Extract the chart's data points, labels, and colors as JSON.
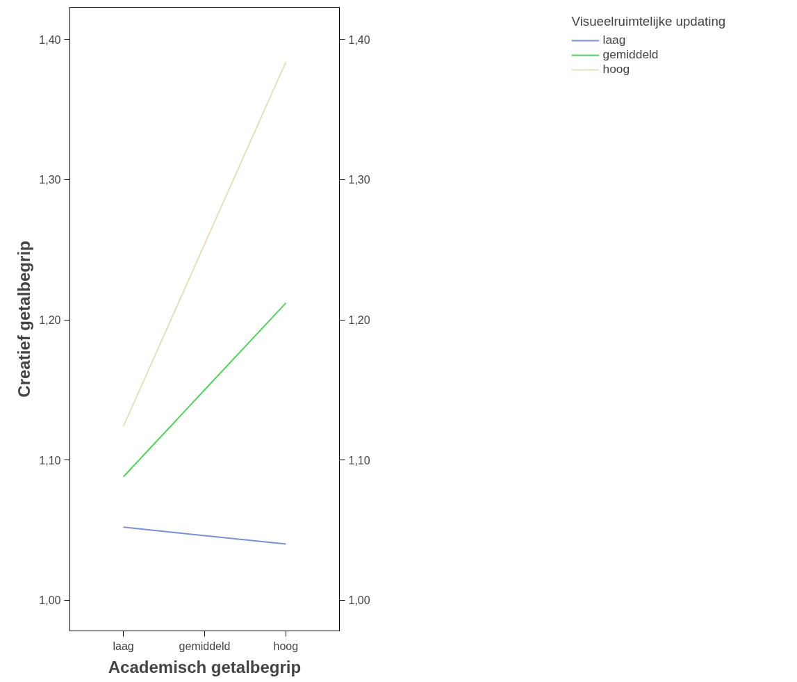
{
  "chart_data": {
    "type": "line",
    "xlabel": "Academisch getalbegrip",
    "ylabel": "Creatief getalbegrip",
    "legend_title": "Visueelruimtelijke updating",
    "categories": [
      "laag",
      "gemiddeld",
      "hoog"
    ],
    "series": [
      {
        "name": "laag",
        "color": "#7b8fd6",
        "values": [
          1.052,
          1.046,
          1.04
        ]
      },
      {
        "name": "gemiddeld",
        "color": "#4fd35a",
        "values": [
          1.088,
          1.15,
          1.212
        ]
      },
      {
        "name": "hoog",
        "color": "#e6e0b8",
        "values": [
          1.124,
          1.254,
          1.384
        ]
      }
    ],
    "ylim": [
      0.978,
      1.423
    ],
    "yticks": [
      {
        "value": 1.0,
        "label": "1,00"
      },
      {
        "value": 1.1,
        "label": "1,10"
      },
      {
        "value": 1.2,
        "label": "1,20"
      },
      {
        "value": 1.3,
        "label": "1,30"
      },
      {
        "value": 1.4,
        "label": "1,40"
      }
    ],
    "y2lim": [
      0.978,
      1.423
    ],
    "y2ticks": [
      {
        "value": 1.0,
        "label": "1,00"
      },
      {
        "value": 1.1,
        "label": "1,10"
      },
      {
        "value": 1.2,
        "label": "1,20"
      },
      {
        "value": 1.3,
        "label": "1,30"
      },
      {
        "value": 1.4,
        "label": "1,40"
      }
    ],
    "legend": "top right",
    "grid": false,
    "marker": "none",
    "line_style": "solid"
  }
}
